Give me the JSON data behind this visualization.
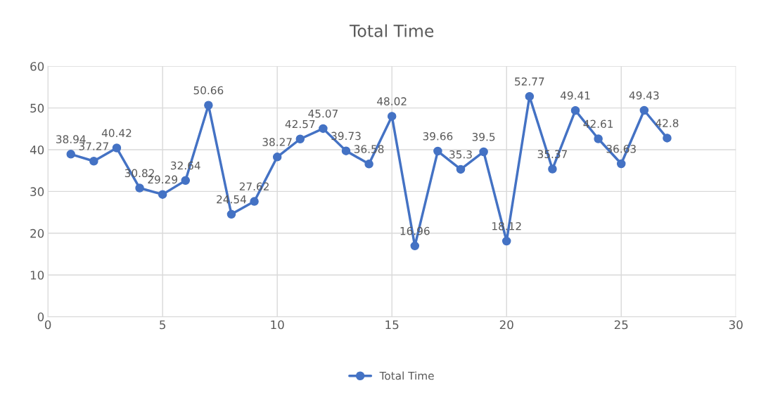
{
  "chart_data": {
    "type": "line",
    "title": "Total Time",
    "x": [
      1,
      2,
      3,
      4,
      5,
      6,
      7,
      8,
      9,
      10,
      11,
      12,
      13,
      14,
      15,
      16,
      17,
      18,
      19,
      20,
      21,
      22,
      23,
      24,
      25,
      26,
      27
    ],
    "series": [
      {
        "name": "Total Time",
        "color": "#4472c4",
        "values": [
          38.94,
          37.27,
          40.42,
          30.82,
          29.29,
          32.64,
          50.66,
          24.54,
          27.62,
          38.27,
          42.57,
          45.07,
          39.73,
          36.58,
          48.02,
          16.96,
          39.66,
          35.3,
          39.5,
          18.12,
          52.77,
          35.37,
          49.41,
          42.61,
          36.63,
          49.43,
          42.8
        ]
      }
    ],
    "xlim": [
      0,
      30
    ],
    "xticks": [
      0,
      5,
      10,
      15,
      20,
      25,
      30
    ],
    "ylim": [
      0,
      60
    ],
    "yticks": [
      0,
      10,
      20,
      30,
      40,
      50,
      60
    ],
    "grid": true,
    "legend": "bottom",
    "marker": "circle",
    "line_style": "solid",
    "data_labels": true
  }
}
